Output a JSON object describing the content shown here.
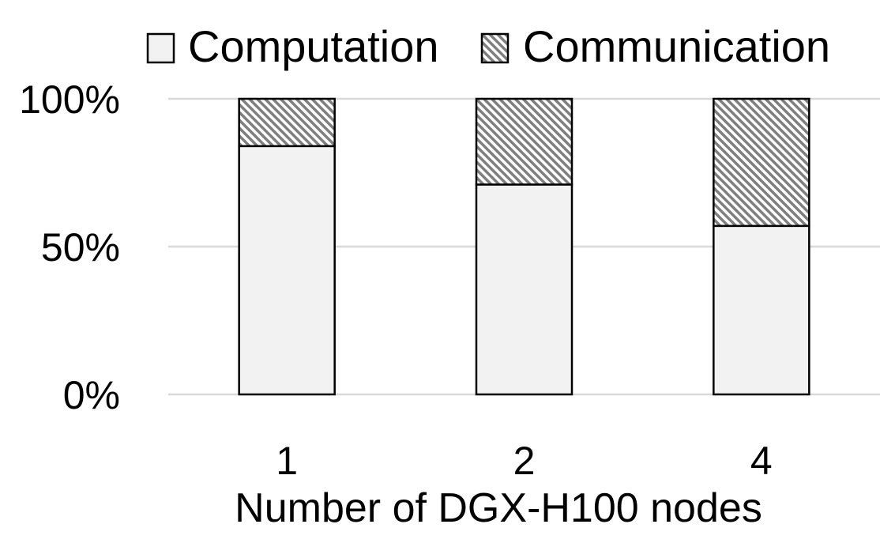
{
  "chart_data": {
    "type": "bar",
    "stacked": true,
    "categories": [
      "1",
      "2",
      "4"
    ],
    "series": [
      {
        "name": "Computation",
        "values": [
          84,
          71,
          57
        ],
        "fill": "#f2f2f2",
        "pattern": "solid"
      },
      {
        "name": "Communication",
        "values": [
          16,
          29,
          43
        ],
        "fill": "#a6a6a6",
        "pattern": "diagonal-hatch"
      }
    ],
    "xlabel": "Number of DGX-H100 nodes",
    "ylabel": "",
    "ylim": [
      0,
      100
    ],
    "yticks": [
      0,
      50,
      100
    ],
    "ytick_labels": [
      "0%",
      "50%",
      "100%"
    ],
    "grid": true,
    "legend_position": "top"
  }
}
